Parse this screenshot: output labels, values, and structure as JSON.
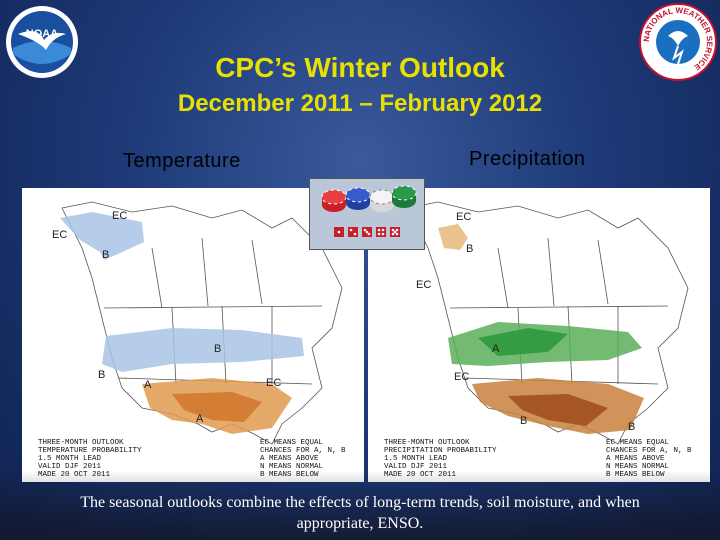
{
  "slide": {
    "title": "CPC’s Winter Outlook",
    "subtitle": "December 2011 – February 2012",
    "caption": "The seasonal outlooks combine the effects of long-term trends, soil moisture, and when appropriate, ENSO."
  },
  "logos": {
    "noaa": {
      "text": "NOAA"
    },
    "nws": {
      "ring_text": "NATIONAL WEATHER SERVICE"
    }
  },
  "maps": {
    "temperature": {
      "label": "Temperature",
      "region_labels": [
        "EC",
        "EC",
        "B",
        "B",
        "B",
        "EC",
        "A",
        "A"
      ],
      "legend_left": [
        "THREE-MONTH OUTLOOK",
        "TEMPERATURE PROBABILITY",
        "1.5 MONTH LEAD",
        "VALID DJF 2011",
        "MADE 20 OCT 2011"
      ],
      "legend_right": [
        "EC MEANS EQUAL",
        "CHANCES FOR A, N, B",
        "A MEANS ABOVE",
        "N MEANS NORMAL",
        "B MEANS BELOW"
      ]
    },
    "precipitation": {
      "label": "Precipitation",
      "region_labels": [
        "EC",
        "B",
        "EC",
        "A",
        "EC",
        "B",
        "B"
      ],
      "legend_left": [
        "THREE-MONTH OUTLOOK",
        "PRECIPITATION PROBABILITY",
        "1.5 MONTH LEAD",
        "VALID DJF 2011",
        "MADE 20 OCT 2011"
      ],
      "legend_right": [
        "EC MEANS EQUAL",
        "CHANCES FOR A, N, B",
        "A MEANS ABOVE",
        "N MEANS NORMAL",
        "B MEANS BELOW"
      ]
    }
  },
  "colors": {
    "title": "#e8e000",
    "below_temp": "#a8c4e4",
    "above_temp": "#e09a50",
    "above_precip": "#5aae5a",
    "below_precip": "#c8803c"
  }
}
